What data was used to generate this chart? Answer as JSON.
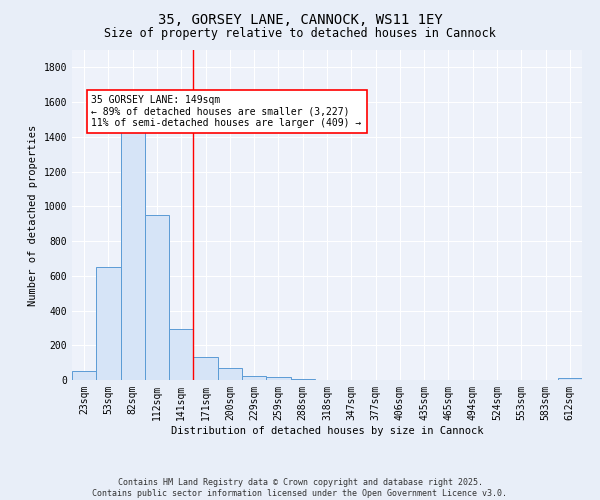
{
  "title": "35, GORSEY LANE, CANNOCK, WS11 1EY",
  "subtitle": "Size of property relative to detached houses in Cannock",
  "xlabel": "Distribution of detached houses by size in Cannock",
  "ylabel": "Number of detached properties",
  "bar_labels": [
    "23sqm",
    "53sqm",
    "82sqm",
    "112sqm",
    "141sqm",
    "171sqm",
    "200sqm",
    "229sqm",
    "259sqm",
    "288sqm",
    "318sqm",
    "347sqm",
    "377sqm",
    "406sqm",
    "435sqm",
    "465sqm",
    "494sqm",
    "524sqm",
    "553sqm",
    "583sqm",
    "612sqm"
  ],
  "bar_values": [
    50,
    650,
    1500,
    950,
    295,
    135,
    70,
    25,
    15,
    5,
    0,
    0,
    0,
    0,
    0,
    0,
    0,
    0,
    0,
    0,
    10
  ],
  "bar_color": "#d6e4f7",
  "bar_edge_color": "#5b9bd5",
  "ylim": [
    0,
    1900
  ],
  "yticks": [
    0,
    200,
    400,
    600,
    800,
    1000,
    1200,
    1400,
    1600,
    1800
  ],
  "vline_x": 4.5,
  "vline_color": "red",
  "annotation_box_text": "35 GORSEY LANE: 149sqm\n← 89% of detached houses are smaller (3,227)\n11% of semi-detached houses are larger (409) →",
  "bg_color": "#e8eef8",
  "plot_bg_color": "#eef2fa",
  "grid_color": "#ffffff",
  "footer_line1": "Contains HM Land Registry data © Crown copyright and database right 2025.",
  "footer_line2": "Contains public sector information licensed under the Open Government Licence v3.0.",
  "title_fontsize": 10,
  "subtitle_fontsize": 8.5,
  "ylabel_fontsize": 7.5,
  "xlabel_fontsize": 7.5,
  "tick_fontsize": 7,
  "annotation_fontsize": 7,
  "footer_fontsize": 6
}
